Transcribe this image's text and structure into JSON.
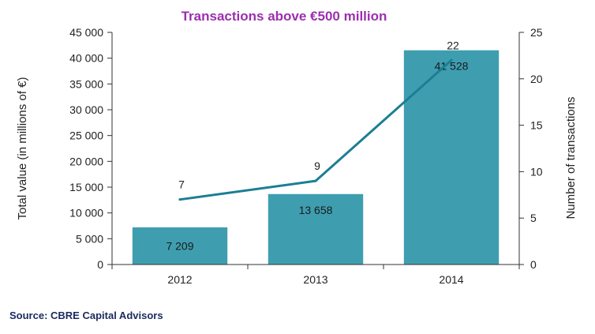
{
  "chart_data": {
    "type": "bar",
    "title": "Transactions above €500 million",
    "categories": [
      "2012",
      "2013",
      "2014"
    ],
    "series": [
      {
        "type": "bar",
        "axis": "left",
        "values": [
          7209,
          13658,
          41528
        ],
        "value_labels": [
          "7 209",
          "13 658",
          "41 528"
        ]
      },
      {
        "type": "line",
        "axis": "right",
        "values": [
          7,
          9,
          22
        ],
        "value_labels": [
          "7",
          "9",
          "22"
        ]
      }
    ],
    "ylabel": "Total value (in millions of €)",
    "ylabel_right": "Number of transactions",
    "ylim": [
      0,
      45000
    ],
    "ylim_right": [
      0,
      25
    ],
    "yticks": [
      "0",
      "5 000",
      "10 000",
      "15 000",
      "20 000",
      "25 000",
      "30 000",
      "35 000",
      "40 000",
      "45 000"
    ],
    "yticks_right": [
      "0",
      "5",
      "10",
      "15",
      "20",
      "25"
    ],
    "grid": false,
    "legend": "none"
  },
  "colors": {
    "bar": "#3e9eb0",
    "line": "#1a7f93",
    "title": "#9b2fae",
    "axis": "#333333",
    "source": "#1a2a5e"
  },
  "source": "Source: CBRE Capital Advisors"
}
